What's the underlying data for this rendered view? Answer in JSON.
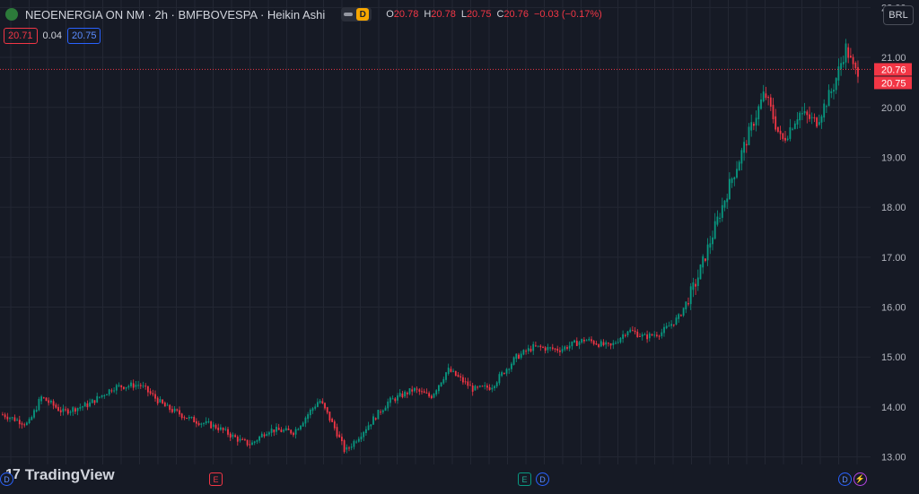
{
  "header": {
    "symbol": "NEOENERGIA ON NM · 2h · BMFBOVESPA · Heikin Ashi",
    "badge": "D",
    "ohlc": [
      {
        "k": "O",
        "v": "20.78"
      },
      {
        "k": "H",
        "v": "20.78"
      },
      {
        "k": "L",
        "v": "20.75"
      },
      {
        "k": "C",
        "v": "20.76"
      }
    ],
    "change": "−0.03 (−0.17%)",
    "bid": "20.71",
    "spread": "0.04",
    "ask": "20.75"
  },
  "currency": "BRL",
  "brand": "TradingView",
  "events": {
    "dividend": "D",
    "earnings": "E",
    "split": "⚡"
  },
  "colors": {
    "up": "#089981",
    "down": "#f23645",
    "background": "#161a25",
    "grid": "#232733"
  },
  "chart_data": {
    "type": "candlestick",
    "style": "Heikin Ashi",
    "y_ticks": [
      "13.00",
      "14.00",
      "15.00",
      "16.00",
      "17.00",
      "18.00",
      "19.00",
      "20.00",
      "21.00",
      "22.00"
    ],
    "ylim": [
      12.85,
      22.15
    ],
    "last_price": "20.76",
    "ask_price": "20.75",
    "close_path": [
      [
        0,
        13.85
      ],
      [
        0.03,
        13.65
      ],
      [
        0.045,
        14.2
      ],
      [
        0.07,
        13.9
      ],
      [
        0.1,
        14.05
      ],
      [
        0.13,
        14.4
      ],
      [
        0.16,
        14.45
      ],
      [
        0.19,
        14.0
      ],
      [
        0.22,
        13.75
      ],
      [
        0.25,
        13.6
      ],
      [
        0.28,
        13.3
      ],
      [
        0.29,
        13.25
      ],
      [
        0.31,
        13.55
      ],
      [
        0.34,
        13.5
      ],
      [
        0.37,
        14.15
      ],
      [
        0.39,
        13.5
      ],
      [
        0.4,
        13.1
      ],
      [
        0.42,
        13.5
      ],
      [
        0.45,
        14.1
      ],
      [
        0.48,
        14.35
      ],
      [
        0.5,
        14.2
      ],
      [
        0.52,
        14.75
      ],
      [
        0.55,
        14.35
      ],
      [
        0.57,
        14.4
      ],
      [
        0.6,
        15.0
      ],
      [
        0.62,
        15.2
      ],
      [
        0.65,
        15.15
      ],
      [
        0.68,
        15.35
      ],
      [
        0.71,
        15.2
      ],
      [
        0.73,
        15.55
      ],
      [
        0.75,
        15.4
      ],
      [
        0.77,
        15.5
      ],
      [
        0.79,
        15.8
      ],
      [
        0.81,
        16.5
      ],
      [
        0.83,
        17.5
      ],
      [
        0.85,
        18.5
      ],
      [
        0.87,
        19.4
      ],
      [
        0.89,
        20.3
      ],
      [
        0.9,
        19.8
      ],
      [
        0.91,
        19.3
      ],
      [
        0.93,
        19.9
      ],
      [
        0.95,
        19.7
      ],
      [
        0.97,
        20.4
      ],
      [
        0.985,
        21.2
      ],
      [
        0.995,
        20.7
      ],
      [
        1.0,
        20.76
      ]
    ]
  }
}
